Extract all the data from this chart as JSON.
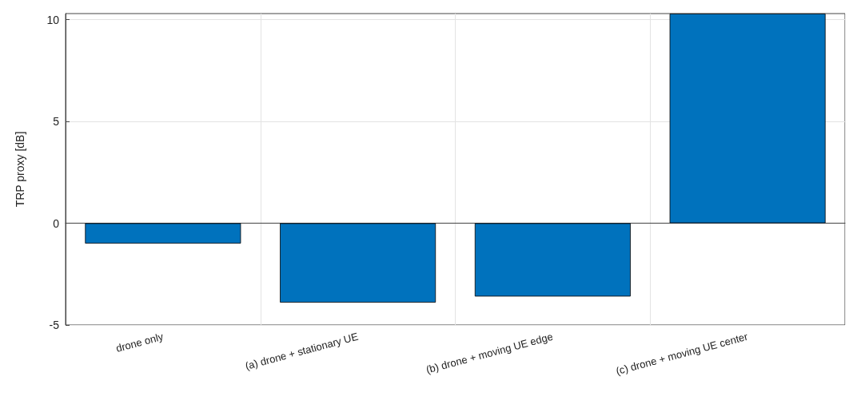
{
  "chart_data": {
    "type": "bar",
    "ylabel": "TRP proxy [dB]",
    "categories": [
      "drone only",
      "(a) drone + stationary UE",
      "(b) drone + moving UE edge",
      "(c) drone + moving UE center"
    ],
    "values": [
      -1.0,
      -3.9,
      -3.6,
      10.3
    ],
    "color": "#0072bd",
    "ylim": [
      -5,
      10.3
    ],
    "yticks": [
      -5,
      0,
      5,
      10
    ],
    "grid": true
  }
}
